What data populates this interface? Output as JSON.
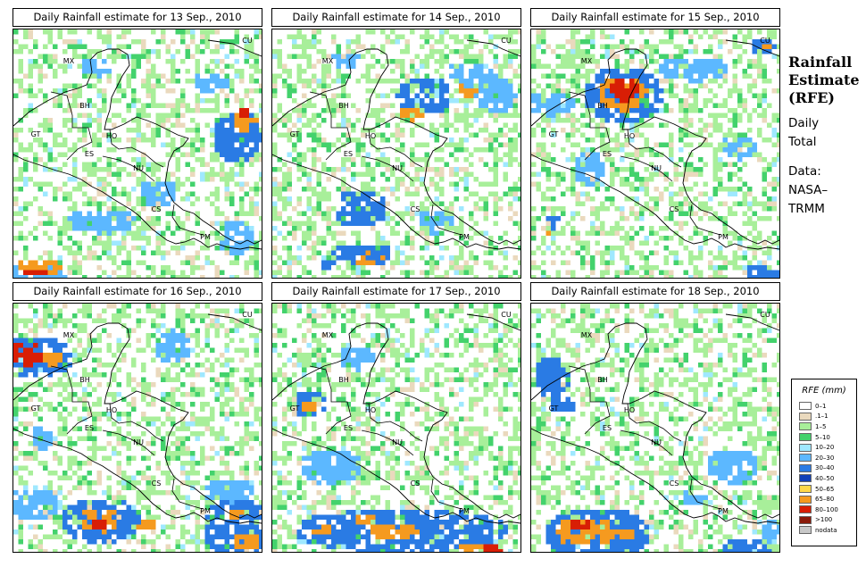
{
  "panels": [
    {
      "title": "Daily Rainfall estimate for  13 Sep., 2010",
      "seed": 13,
      "blobs": [
        [
          10,
          270,
          48,
          14,
          "#5cb8ff"
        ],
        [
          30,
          262,
          28,
          10,
          "#f59a1f"
        ],
        [
          20,
          268,
          14,
          5,
          "#d81e05"
        ],
        [
          95,
          210,
          40,
          14,
          "#5cb8ff"
        ],
        [
          160,
          180,
          22,
          16,
          "#5cb8ff"
        ],
        [
          250,
          120,
          28,
          30,
          "#2a7be4"
        ],
        [
          255,
          100,
          14,
          12,
          "#f59a1f"
        ],
        [
          255,
          90,
          8,
          7,
          "#d81e05"
        ],
        [
          90,
          40,
          18,
          12,
          "#5cb8ff"
        ],
        [
          220,
          55,
          20,
          12,
          "#5cb8ff"
        ],
        [
          250,
          230,
          22,
          20,
          "#5cb8ff"
        ]
      ]
    },
    {
      "title": "Daily Rainfall estimate for  14 Sep., 2010",
      "seed": 14,
      "blobs": [
        [
          170,
          70,
          30,
          22,
          "#2a7be4"
        ],
        [
          150,
          92,
          14,
          9,
          "#f59a1f"
        ],
        [
          215,
          65,
          14,
          9,
          "#f59a1f"
        ],
        [
          220,
          45,
          26,
          14,
          "#5cb8ff"
        ],
        [
          95,
          200,
          30,
          22,
          "#2a7be4"
        ],
        [
          100,
          250,
          40,
          12,
          "#2a7be4"
        ],
        [
          105,
          253,
          22,
          6,
          "#f59a1f"
        ],
        [
          60,
          260,
          10,
          8,
          "#2a7be4"
        ],
        [
          80,
          30,
          18,
          10,
          "#5cb8ff"
        ],
        [
          250,
          70,
          22,
          22,
          "#5cb8ff"
        ],
        [
          180,
          210,
          20,
          14,
          "#5cb8ff"
        ]
      ]
    },
    {
      "title": "Daily Rainfall estimate for  15 Sep., 2010",
      "seed": 15,
      "blobs": [
        [
          100,
          70,
          45,
          32,
          "#2a7be4"
        ],
        [
          100,
          68,
          28,
          20,
          "#f59a1f"
        ],
        [
          102,
          66,
          18,
          14,
          "#d81e05"
        ],
        [
          20,
          80,
          30,
          14,
          "#5cb8ff"
        ],
        [
          60,
          150,
          18,
          20,
          "#5cb8ff"
        ],
        [
          20,
          215,
          10,
          10,
          "#2a7be4"
        ],
        [
          15,
          222,
          6,
          4,
          "#f59a1f"
        ],
        [
          180,
          40,
          40,
          14,
          "#5cb8ff"
        ],
        [
          255,
          15,
          14,
          10,
          "#2a7be4"
        ],
        [
          258,
          15,
          6,
          4,
          "#f59a1f"
        ],
        [
          230,
          130,
          20,
          14,
          "#5cb8ff"
        ],
        [
          255,
          270,
          20,
          14,
          "#2a7be4"
        ]
      ]
    },
    {
      "title": "Daily Rainfall estimate for  16 Sep., 2010",
      "seed": 16,
      "blobs": [
        [
          22,
          55,
          40,
          24,
          "#2a7be4"
        ],
        [
          15,
          55,
          18,
          16,
          "#d81e05"
        ],
        [
          40,
          60,
          12,
          10,
          "#f59a1f"
        ],
        [
          95,
          240,
          45,
          26,
          "#2a7be4"
        ],
        [
          95,
          240,
          22,
          14,
          "#f59a1f"
        ],
        [
          90,
          245,
          10,
          8,
          "#d81e05"
        ],
        [
          145,
          245,
          12,
          8,
          "#f59a1f"
        ],
        [
          250,
          250,
          40,
          34,
          "#2a7be4"
        ],
        [
          260,
          262,
          16,
          10,
          "#f59a1f"
        ],
        [
          245,
          230,
          10,
          6,
          "#f59a1f"
        ],
        [
          240,
          205,
          30,
          14,
          "#5cb8ff"
        ],
        [
          175,
          45,
          22,
          18,
          "#5cb8ff"
        ],
        [
          20,
          220,
          30,
          18,
          "#5cb8ff"
        ],
        [
          30,
          150,
          12,
          16,
          "#5cb8ff"
        ]
      ]
    },
    {
      "title": "Daily Rainfall estimate for  17 Sep., 2010",
      "seed": 17,
      "blobs": [
        [
          38,
          110,
          18,
          16,
          "#2a7be4"
        ],
        [
          38,
          112,
          10,
          8,
          "#f59a1f"
        ],
        [
          140,
          250,
          120,
          26,
          "#2a7be4"
        ],
        [
          130,
          250,
          28,
          10,
          "#f59a1f"
        ],
        [
          100,
          240,
          12,
          8,
          "#f59a1f"
        ],
        [
          230,
          275,
          26,
          12,
          "#d81e05"
        ],
        [
          220,
          268,
          14,
          6,
          "#f59a1f"
        ],
        [
          60,
          180,
          35,
          20,
          "#5cb8ff"
        ],
        [
          90,
          60,
          20,
          14,
          "#5cb8ff"
        ],
        [
          50,
          250,
          14,
          8,
          "#f59a1f"
        ]
      ]
    },
    {
      "title": "Daily Rainfall estimate for  18 Sep., 2010",
      "seed": 18,
      "blobs": [
        [
          70,
          255,
          60,
          30,
          "#2a7be4"
        ],
        [
          60,
          252,
          36,
          16,
          "#f59a1f"
        ],
        [
          50,
          245,
          12,
          8,
          "#d81e05"
        ],
        [
          105,
          258,
          10,
          8,
          "#f59a1f"
        ],
        [
          20,
          80,
          20,
          24,
          "#2a7be4"
        ],
        [
          30,
          110,
          16,
          10,
          "#2a7be4"
        ],
        [
          240,
          270,
          30,
          14,
          "#2a7be4"
        ],
        [
          265,
          250,
          12,
          14,
          "#5cb8ff"
        ],
        [
          220,
          180,
          30,
          20,
          "#5cb8ff"
        ],
        [
          180,
          215,
          14,
          10,
          "#5cb8ff"
        ]
      ]
    }
  ],
  "map_labels": [
    "MX",
    "BH",
    "GT",
    "HO",
    "ES",
    "NU",
    "CS",
    "PM",
    "CU"
  ],
  "side": {
    "title1": "Rainfall",
    "title2": "Estimate",
    "title3": "(RFE)",
    "sub1": "Daily",
    "sub2": "Total",
    "data1": "Data:",
    "data2": "NASA–",
    "data3": "TRMM"
  },
  "legend": {
    "title": "RFE (mm)",
    "items": [
      {
        "label": "0–1",
        "color": "#ffffff"
      },
      {
        "label": ".1–1",
        "color": "#ead9bd"
      },
      {
        "label": "1–5",
        "color": "#a8ef9a"
      },
      {
        "label": "5–10",
        "color": "#43d26c"
      },
      {
        "label": "10–20",
        "color": "#9fe8ff"
      },
      {
        "label": "20–30",
        "color": "#5cb8ff"
      },
      {
        "label": "30–40",
        "color": "#2a7be4"
      },
      {
        "label": "40–50",
        "color": "#1140b8"
      },
      {
        "label": "50–65",
        "color": "#ffd84a"
      },
      {
        "label": "65–80",
        "color": "#f59a1f"
      },
      {
        "label": "80–100",
        "color": "#d81e05"
      },
      {
        "label": ">100",
        "color": "#8a1a0a"
      },
      {
        "label": "nodata",
        "color": "#c8c8c8"
      }
    ]
  }
}
